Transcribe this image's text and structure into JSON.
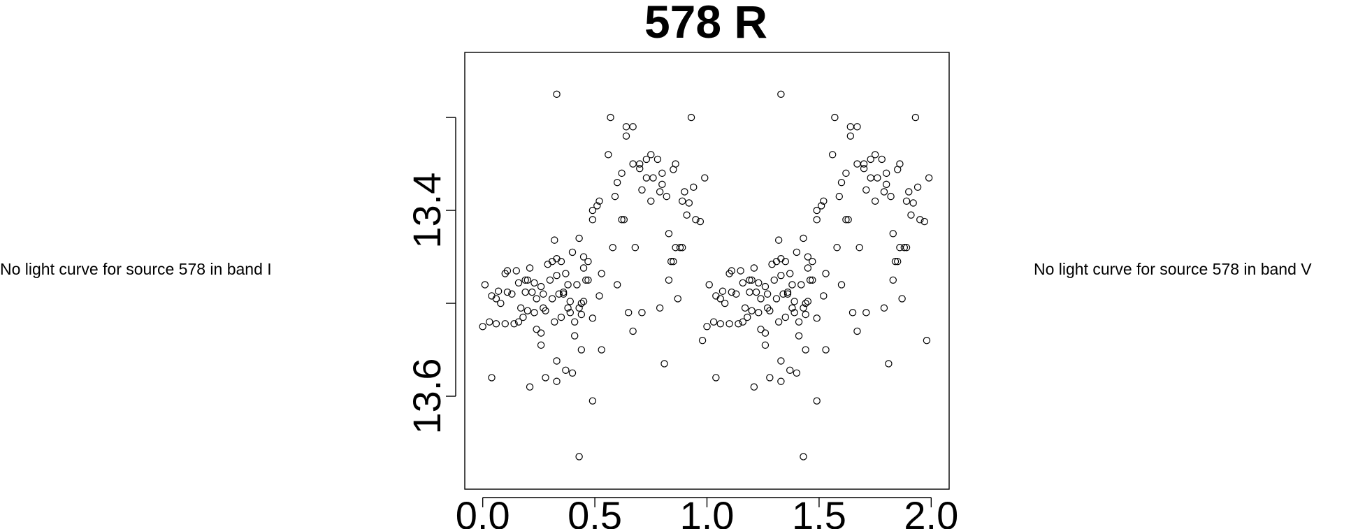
{
  "notes": {
    "left": "No light curve for source 578 in band I",
    "right": "No light curve for source 578 in band V"
  },
  "chart_data": {
    "type": "scatter",
    "title": "578 R",
    "xlabel": "",
    "ylabel": "",
    "xlim": [
      -0.08,
      2.08
    ],
    "ylim": [
      13.7,
      13.23
    ],
    "y_reversed": true,
    "x_ticks": [
      0.0,
      0.5,
      1.0,
      1.5,
      2.0
    ],
    "x_tick_labels": [
      "0.0",
      "0.5",
      "1.0",
      "1.5",
      "2.0"
    ],
    "y_ticks": [
      13.3,
      13.4,
      13.5,
      13.6
    ],
    "y_tick_labels": [
      "",
      "13.4",
      "",
      "13.6"
    ],
    "marker": "open-circle",
    "grid": false,
    "base_points": [
      [
        0.0,
        13.525
      ],
      [
        0.03,
        13.52
      ],
      [
        0.06,
        13.522
      ],
      [
        0.1,
        13.522
      ],
      [
        0.14,
        13.522
      ],
      [
        0.04,
        13.58
      ],
      [
        0.01,
        13.48
      ],
      [
        0.04,
        13.492
      ],
      [
        0.06,
        13.495
      ],
      [
        0.07,
        13.487
      ],
      [
        0.08,
        13.5
      ],
      [
        0.1,
        13.468
      ],
      [
        0.11,
        13.488
      ],
      [
        0.13,
        13.49
      ],
      [
        0.16,
        13.478
      ],
      [
        0.17,
        13.505
      ],
      [
        0.18,
        13.515
      ],
      [
        0.2,
        13.508
      ],
      [
        0.19,
        13.475
      ],
      [
        0.2,
        13.475
      ],
      [
        0.21,
        13.59
      ],
      [
        0.21,
        13.462
      ],
      [
        0.22,
        13.488
      ],
      [
        0.23,
        13.478
      ],
      [
        0.24,
        13.495
      ],
      [
        0.26,
        13.532
      ],
      [
        0.26,
        13.545
      ],
      [
        0.26,
        13.482
      ],
      [
        0.27,
        13.49
      ],
      [
        0.28,
        13.508
      ],
      [
        0.29,
        13.458
      ],
      [
        0.3,
        13.475
      ],
      [
        0.31,
        13.495
      ],
      [
        0.32,
        13.52
      ],
      [
        0.33,
        13.562
      ],
      [
        0.33,
        13.584
      ],
      [
        0.32,
        13.432
      ],
      [
        0.33,
        13.452
      ],
      [
        0.33,
        13.47
      ],
      [
        0.34,
        13.49
      ],
      [
        0.35,
        13.455
      ],
      [
        0.35,
        13.515
      ],
      [
        0.36,
        13.488
      ],
      [
        0.37,
        13.572
      ],
      [
        0.37,
        13.468
      ],
      [
        0.38,
        13.505
      ],
      [
        0.39,
        13.51
      ],
      [
        0.39,
        13.498
      ],
      [
        0.4,
        13.575
      ],
      [
        0.4,
        13.445
      ],
      [
        0.41,
        13.52
      ],
      [
        0.42,
        13.48
      ],
      [
        0.43,
        13.505
      ],
      [
        0.44,
        13.512
      ],
      [
        0.44,
        13.5
      ],
      [
        0.45,
        13.498
      ],
      [
        0.45,
        13.462
      ],
      [
        0.45,
        13.45
      ],
      [
        0.46,
        13.475
      ],
      [
        0.47,
        13.455
      ],
      [
        0.43,
        13.43
      ],
      [
        0.44,
        13.55
      ],
      [
        0.49,
        13.516
      ],
      [
        0.49,
        13.605
      ],
      [
        0.49,
        13.41
      ],
      [
        0.49,
        13.4
      ],
      [
        0.51,
        13.395
      ],
      [
        0.52,
        13.492
      ],
      [
        0.52,
        13.39
      ],
      [
        0.53,
        13.55
      ],
      [
        0.56,
        13.34
      ],
      [
        0.57,
        13.3
      ],
      [
        0.59,
        13.385
      ],
      [
        0.6,
        13.48
      ],
      [
        0.6,
        13.37
      ],
      [
        0.62,
        13.36
      ],
      [
        0.62,
        13.41
      ],
      [
        0.64,
        13.31
      ],
      [
        0.64,
        13.32
      ],
      [
        0.65,
        13.51
      ],
      [
        0.67,
        13.35
      ],
      [
        0.67,
        13.31
      ],
      [
        0.68,
        13.44
      ],
      [
        0.7,
        13.355
      ],
      [
        0.71,
        13.51
      ],
      [
        0.71,
        13.378
      ],
      [
        0.73,
        13.345
      ],
      [
        0.73,
        13.365
      ],
      [
        0.75,
        13.39
      ],
      [
        0.75,
        13.34
      ],
      [
        0.78,
        13.345
      ],
      [
        0.79,
        13.505
      ],
      [
        0.8,
        13.372
      ],
      [
        0.81,
        13.565
      ],
      [
        0.82,
        13.385
      ],
      [
        0.83,
        13.475
      ],
      [
        0.84,
        13.455
      ],
      [
        0.85,
        13.356
      ],
      [
        0.86,
        13.44
      ],
      [
        0.87,
        13.495
      ],
      [
        0.88,
        13.44
      ],
      [
        0.89,
        13.39
      ],
      [
        0.9,
        13.38
      ],
      [
        0.91,
        13.405
      ],
      [
        0.93,
        13.3
      ],
      [
        0.94,
        13.375
      ],
      [
        0.95,
        13.41
      ],
      [
        0.97,
        13.412
      ],
      [
        0.98,
        13.54
      ],
      [
        0.99,
        13.365
      ],
      [
        0.85,
        13.455
      ],
      [
        0.83,
        13.425
      ],
      [
        0.92,
        13.392
      ],
      [
        0.41,
        13.535
      ],
      [
        0.47,
        13.475
      ],
      [
        0.38,
        13.48
      ],
      [
        0.36,
        13.49
      ],
      [
        0.31,
        13.455
      ],
      [
        0.27,
        13.505
      ],
      [
        0.24,
        13.528
      ],
      [
        0.19,
        13.488
      ],
      [
        0.15,
        13.465
      ],
      [
        0.11,
        13.465
      ],
      [
        0.43,
        13.665
      ],
      [
        0.28,
        13.58
      ],
      [
        0.23,
        13.51
      ],
      [
        0.16,
        13.52
      ],
      [
        0.33,
        13.275
      ],
      [
        0.53,
        13.468
      ],
      [
        0.67,
        13.53
      ],
      [
        0.63,
        13.41
      ],
      [
        0.89,
        13.44
      ],
      [
        0.58,
        13.44
      ],
      [
        0.7,
        13.35
      ],
      [
        0.76,
        13.365
      ],
      [
        0.86,
        13.35
      ],
      [
        0.79,
        13.38
      ],
      [
        0.8,
        13.36
      ]
    ]
  }
}
